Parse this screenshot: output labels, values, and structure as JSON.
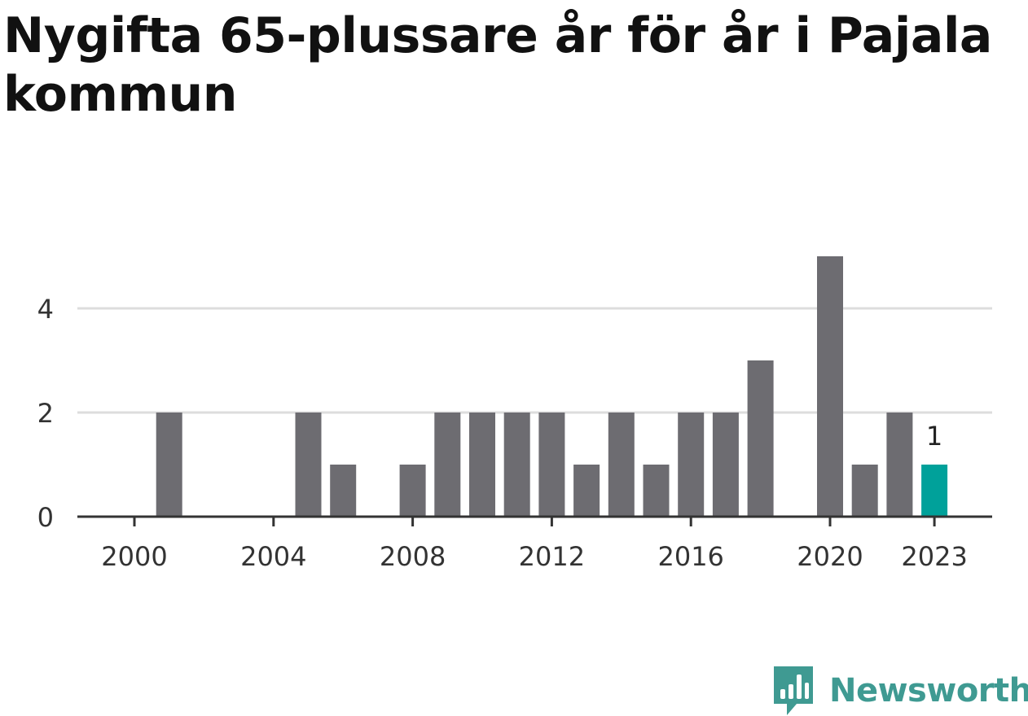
{
  "title": "Nygifta 65-plussare år för år i Pajala kommun",
  "brand": {
    "name": "Newsworthy",
    "color": "#3f9a92"
  },
  "chart_data": {
    "type": "bar",
    "title": "Nygifta 65-plussare år för år i Pajala kommun",
    "xlabel": "",
    "ylabel": "",
    "categories": [
      "2000",
      "2001",
      "2002",
      "2003",
      "2004",
      "2005",
      "2006",
      "2007",
      "2008",
      "2009",
      "2010",
      "2011",
      "2012",
      "2013",
      "2014",
      "2015",
      "2016",
      "2017",
      "2018",
      "2019",
      "2020",
      "2021",
      "2022",
      "2023"
    ],
    "values": [
      0,
      2,
      0,
      0,
      0,
      2,
      1,
      0,
      1,
      2,
      2,
      2,
      2,
      1,
      2,
      1,
      2,
      2,
      3,
      0,
      5,
      1,
      2,
      1
    ],
    "ylim": [
      0,
      5
    ],
    "y_ticks": [
      "0",
      "2",
      "4"
    ],
    "x_ticks": [
      "2000",
      "2004",
      "2008",
      "2012",
      "2016",
      "2020",
      "2023"
    ],
    "highlight": {
      "category": "2023",
      "label": "1"
    },
    "colors": {
      "bar": "#6d6c71",
      "highlight": "#00a19a",
      "grid": "#dddddd",
      "axis": "#333333"
    },
    "grid": true
  }
}
